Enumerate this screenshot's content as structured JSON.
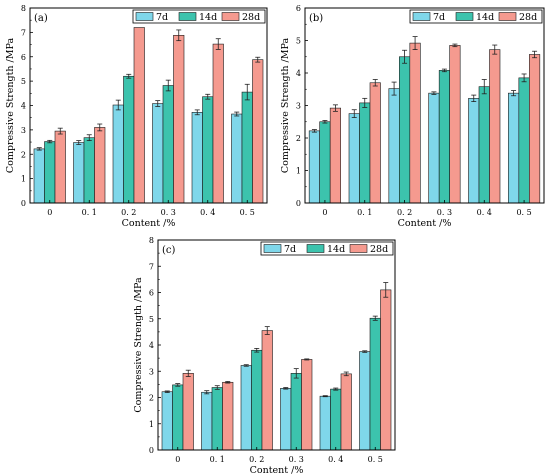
{
  "chart_data": [
    {
      "type": "bar",
      "panel_label": "(a)",
      "categories": [
        "0",
        "0. 1",
        "0. 2",
        "0. 3",
        "0. 4",
        "0. 5"
      ],
      "xlabel": "Content /%",
      "ylabel": "Compressive Strength /MPa",
      "ylim": [
        0,
        8
      ],
      "yticks": [
        "0",
        "1",
        "2",
        "3",
        "4",
        "5",
        "6",
        "7",
        "8"
      ],
      "legend_position": "top-right",
      "series": [
        {
          "name": "7d",
          "color": "#7fd7ea",
          "values": [
            2.22,
            2.48,
            4.02,
            4.08,
            3.72,
            3.65
          ],
          "errors": [
            0.05,
            0.08,
            0.2,
            0.12,
            0.1,
            0.08
          ]
        },
        {
          "name": "14d",
          "color": "#3cc3ad",
          "values": [
            2.52,
            2.68,
            5.2,
            4.82,
            4.36,
            4.55
          ],
          "errors": [
            0.05,
            0.12,
            0.08,
            0.22,
            0.1,
            0.32
          ]
        },
        {
          "name": "28d",
          "color": "#f59a8f",
          "values": [
            2.95,
            3.1,
            7.2,
            6.88,
            6.52,
            5.88
          ],
          "errors": [
            0.12,
            0.14,
            0.0,
            0.22,
            0.22,
            0.1
          ]
        }
      ]
    },
    {
      "type": "bar",
      "panel_label": "(b)",
      "categories": [
        "0",
        "0. 1",
        "0. 2",
        "0. 3",
        "0. 4",
        "0. 5"
      ],
      "xlabel": "Content /%",
      "ylabel": "Compressive Strength /MPa",
      "ylim": [
        0,
        6
      ],
      "yticks": [
        "0",
        "1",
        "2",
        "3",
        "4",
        "5",
        "6"
      ],
      "legend_position": "top-right",
      "series": [
        {
          "name": "7d",
          "color": "#7fd7ea",
          "values": [
            2.22,
            2.75,
            3.52,
            3.38,
            3.22,
            3.38
          ],
          "errors": [
            0.04,
            0.12,
            0.2,
            0.04,
            0.1,
            0.08
          ]
        },
        {
          "name": "14d",
          "color": "#3cc3ad",
          "values": [
            2.5,
            3.08,
            4.5,
            4.08,
            3.58,
            3.85
          ],
          "errors": [
            0.04,
            0.14,
            0.2,
            0.04,
            0.22,
            0.12
          ]
        },
        {
          "name": "28d",
          "color": "#f59a8f",
          "values": [
            2.92,
            3.7,
            4.92,
            4.85,
            4.72,
            4.57
          ],
          "errors": [
            0.1,
            0.1,
            0.2,
            0.04,
            0.14,
            0.1
          ]
        }
      ]
    },
    {
      "type": "bar",
      "panel_label": "(c)",
      "categories": [
        "0",
        "0. 1",
        "0. 2",
        "0. 3",
        "0. 4",
        "0. 5"
      ],
      "xlabel": "Content /%",
      "ylabel": "Compressive Strength /MPa",
      "ylim": [
        0,
        8
      ],
      "yticks": [
        "0",
        "1",
        "2",
        "3",
        "4",
        "5",
        "6",
        "7",
        "8"
      ],
      "legend_position": "top-right",
      "series": [
        {
          "name": "7d",
          "color": "#7fd7ea",
          "values": [
            2.22,
            2.2,
            3.22,
            2.35,
            2.05,
            3.75
          ],
          "errors": [
            0.03,
            0.06,
            0.03,
            0.03,
            0.02,
            0.03
          ]
        },
        {
          "name": "14d",
          "color": "#3cc3ad",
          "values": [
            2.48,
            2.38,
            3.8,
            2.92,
            2.32,
            5.02
          ],
          "errors": [
            0.05,
            0.07,
            0.07,
            0.18,
            0.04,
            0.08
          ]
        },
        {
          "name": "28d",
          "color": "#f59a8f",
          "values": [
            2.92,
            2.58,
            4.55,
            3.45,
            2.9,
            6.1
          ],
          "errors": [
            0.12,
            0.03,
            0.15,
            0.02,
            0.07,
            0.28
          ]
        }
      ]
    }
  ]
}
